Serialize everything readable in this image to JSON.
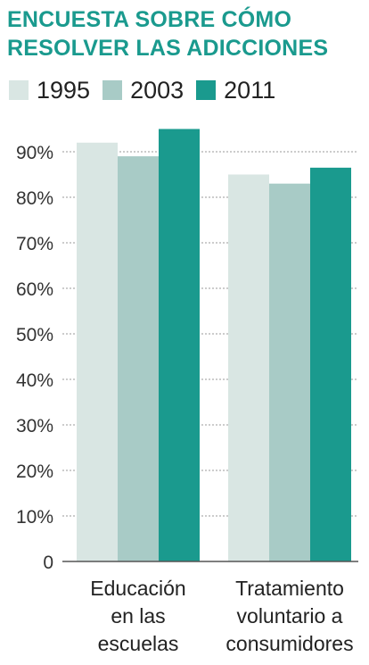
{
  "title_lines": [
    "ENCUESTA SOBRE CÓMO",
    "RESOLVER LAS ADICCIONES"
  ],
  "colors": {
    "1995": "#d9e6e3",
    "2003": "#a8cbc6",
    "2011": "#1a9a8e",
    "title": "#1a9a8e"
  },
  "chart_data": {
    "type": "bar",
    "categories": [
      [
        "Educación",
        "en las",
        "escuelas"
      ],
      [
        "Tratamiento",
        "voluntario a",
        "consumidores"
      ]
    ],
    "series": [
      {
        "name": "1995",
        "values": [
          92,
          85
        ]
      },
      {
        "name": "2003",
        "values": [
          89,
          83
        ]
      },
      {
        "name": "2011",
        "values": [
          95,
          86.5
        ]
      }
    ],
    "yticks": [
      "0",
      "10%",
      "20%",
      "30%",
      "40%",
      "50%",
      "60%",
      "70%",
      "80%",
      "90%"
    ],
    "ylim": [
      0,
      90
    ],
    "grid": true,
    "legend": "top"
  }
}
